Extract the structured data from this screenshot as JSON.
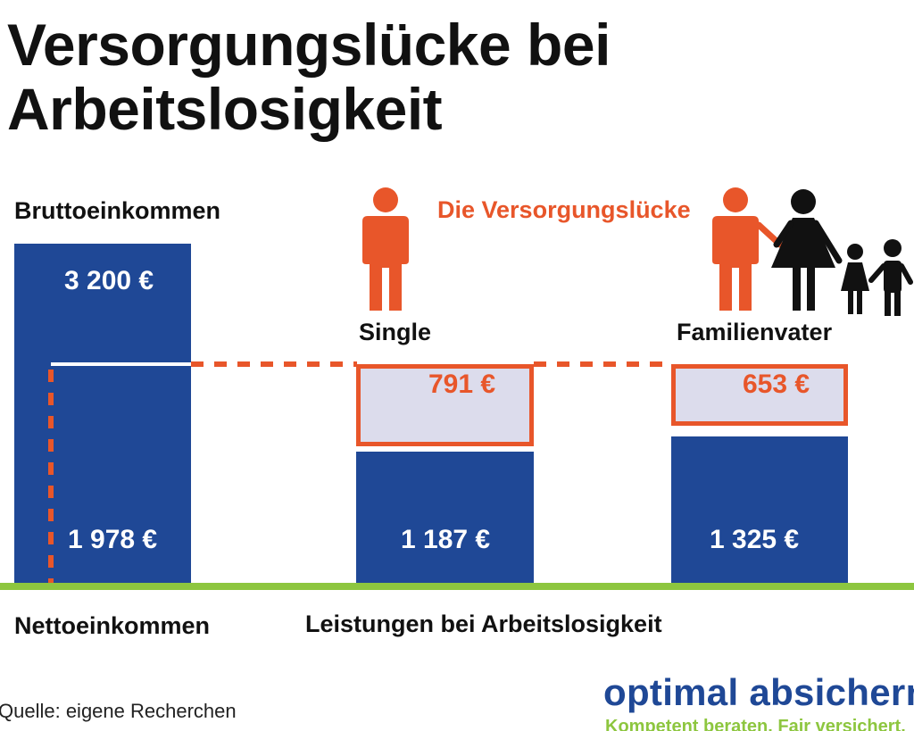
{
  "title": {
    "line1": "Versorgungslücke bei",
    "line2": "Arbeitslosigkeit"
  },
  "labels": {
    "gross": "Bruttoeinkommen",
    "net": "Nettoeinkommen",
    "benefits": "Leistungen bei Arbeitslosigkeit",
    "gap_heading": "Die Versorgungslücke",
    "single": "Single",
    "family": "Familienvater"
  },
  "source": "Quelle: eigene Recherchen",
  "brand": {
    "name": "optimal absichern",
    "tagline": "Kompetent beraten. Fair versichert."
  },
  "colors": {
    "bar": "#1f4896",
    "gap_border": "#e8562a",
    "gap_fill": "#dcdcec",
    "baseline": "#8dc63f",
    "accent": "#e8562a"
  },
  "icons": [
    "person-icon",
    "family-icon"
  ],
  "chart_data": {
    "type": "bar",
    "title": "Versorgungslücke bei Arbeitslosigkeit",
    "unit": "€",
    "categories": [
      "Bruttoeinkommen / Nettoeinkommen",
      "Single",
      "Familienvater"
    ],
    "gross_income": 3200,
    "net_income": 1978,
    "benefits": [
      1187,
      1325
    ],
    "gaps": [
      791,
      653
    ],
    "value_labels": {
      "gross": "3 200  €",
      "net": "1 978  €",
      "single_benefit": "1 187  €",
      "family_benefit": "1 325   €",
      "single_gap": "791 €",
      "family_gap": "653 €"
    },
    "ylim": [
      0,
      3200
    ]
  }
}
